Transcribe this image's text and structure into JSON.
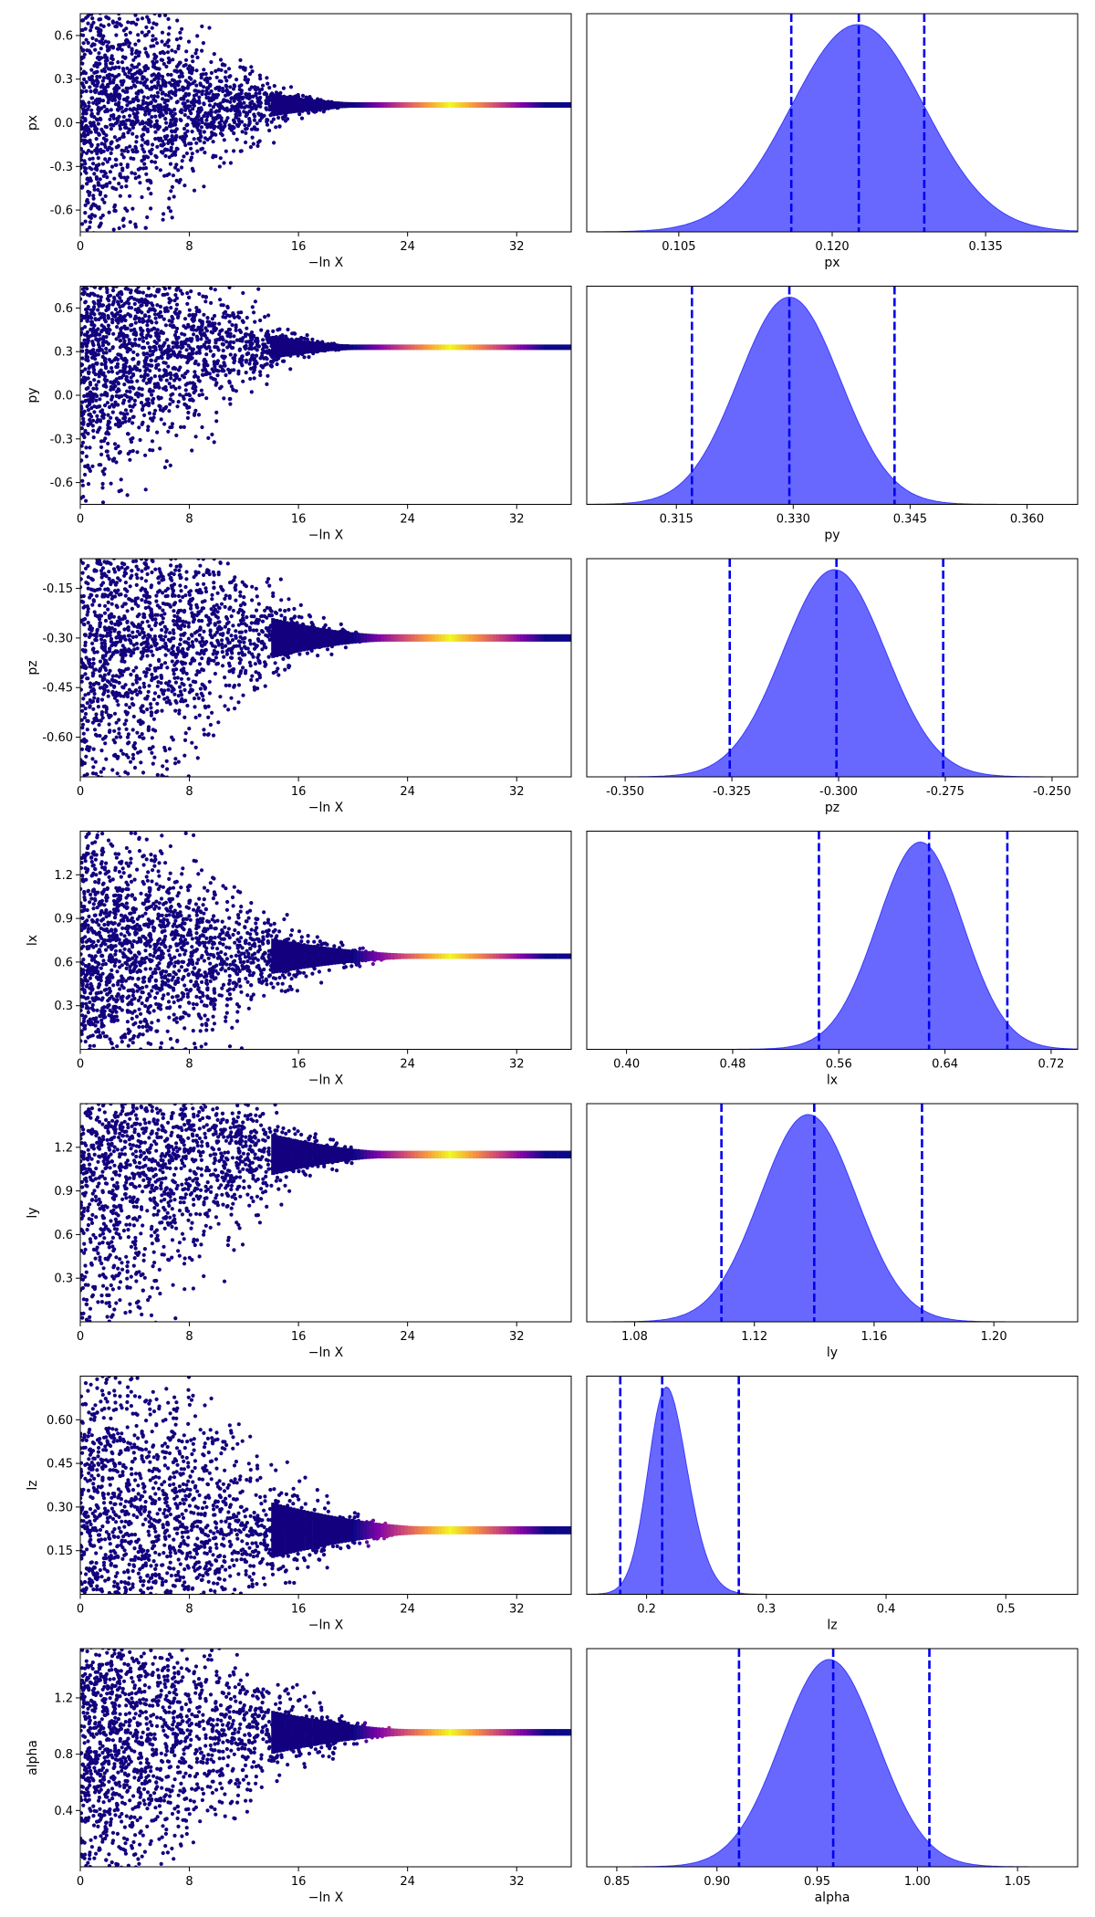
{
  "figure": {
    "background": "#ffffff",
    "title": ""
  },
  "colors": {
    "trace_base": "#12007e",
    "trace_colormap": "plasma",
    "density_fill": "#5b5bff",
    "density_edge": "#3a3aff",
    "quantile_line": "#0000ee"
  },
  "chart_data": [
    {
      "type": "scatter",
      "panel": "trace",
      "param": "px",
      "xlabel": "−ln X",
      "ylabel": "px",
      "xlim": [
        0,
        36
      ],
      "ylim": [
        -0.75,
        0.75
      ],
      "xticks": [
        "0",
        "8",
        "16",
        "24",
        "32"
      ],
      "yticks": [
        "0.6",
        "0.3",
        "0.0",
        "-0.3",
        "-0.6"
      ],
      "converged_value": 0.1225,
      "start_spread": 0.75,
      "converge_x": 20,
      "peak_x": 27,
      "grid": false,
      "colormap": "plasma"
    },
    {
      "type": "area",
      "panel": "posterior",
      "param": "px",
      "xlabel": "px",
      "xlim": [
        0.096,
        0.144
      ],
      "xticks": [
        "0.105",
        "0.120",
        "0.135"
      ],
      "mode": 0.1225,
      "sd": 0.0065,
      "skew": 0,
      "quantiles": [
        0.116,
        0.1226,
        0.129
      ],
      "grid": false
    },
    {
      "type": "scatter",
      "panel": "trace",
      "param": "py",
      "xlabel": "−ln X",
      "ylabel": "py",
      "xlim": [
        0,
        36
      ],
      "ylim": [
        -0.75,
        0.75
      ],
      "xticks": [
        "0",
        "8",
        "16",
        "24",
        "32"
      ],
      "yticks": [
        "0.6",
        "0.3",
        "0.0",
        "-0.3",
        "-0.6"
      ],
      "converged_value": 0.33,
      "start_spread": 0.75,
      "converge_x": 20,
      "peak_x": 27,
      "grid": false,
      "colormap": "plasma"
    },
    {
      "type": "area",
      "panel": "posterior",
      "param": "py",
      "xlabel": "py",
      "xlim": [
        0.3035,
        0.3665
      ],
      "xticks": [
        "0.315",
        "0.330",
        "0.345",
        "0.360"
      ],
      "mode": 0.3295,
      "sd": 0.0065,
      "skew": 0,
      "quantiles": [
        0.317,
        0.3295,
        0.343
      ],
      "grid": false
    },
    {
      "type": "scatter",
      "panel": "trace",
      "param": "pz",
      "xlabel": "−ln X",
      "ylabel": "pz",
      "xlim": [
        0,
        36
      ],
      "ylim": [
        -0.72,
        -0.06
      ],
      "xticks": [
        "0",
        "8",
        "16",
        "24",
        "32"
      ],
      "yticks": [
        "-0.15",
        "-0.30",
        "-0.45",
        "-0.60"
      ],
      "converged_value": -0.3,
      "start_spread": 0.45,
      "converge_x": 22,
      "peak_x": 27,
      "grid": false,
      "colormap": "plasma"
    },
    {
      "type": "area",
      "panel": "posterior",
      "param": "pz",
      "xlabel": "pz",
      "xlim": [
        -0.359,
        -0.244
      ],
      "xticks": [
        "-0.350",
        "-0.325",
        "-0.300",
        "-0.275",
        "-0.250"
      ],
      "mode": -0.301,
      "sd": 0.012,
      "skew": 0,
      "quantiles": [
        -0.3255,
        -0.3005,
        -0.2755
      ],
      "grid": false
    },
    {
      "type": "scatter",
      "panel": "trace",
      "param": "lx",
      "xlabel": "−ln X",
      "ylabel": "lx",
      "xlim": [
        0,
        36
      ],
      "ylim": [
        0.0,
        1.5
      ],
      "xticks": [
        "0",
        "8",
        "16",
        "24",
        "32"
      ],
      "yticks": [
        "1.2",
        "0.9",
        "0.6",
        "0.3"
      ],
      "converged_value": 0.64,
      "start_spread": 0.75,
      "converge_x": 24,
      "peak_x": 27,
      "grid": false,
      "colormap": "plasma"
    },
    {
      "type": "area",
      "panel": "posterior",
      "param": "lx",
      "xlabel": "lx",
      "xlim": [
        0.37,
        0.74
      ],
      "xticks": [
        "0.40",
        "0.48",
        "0.56",
        "0.64",
        "0.72"
      ],
      "mode": 0.636,
      "sd": 0.036,
      "skew": -0.6,
      "quantiles": [
        0.545,
        0.628,
        0.687
      ],
      "grid": false
    },
    {
      "type": "scatter",
      "panel": "trace",
      "param": "ly",
      "xlabel": "−ln X",
      "ylabel": "ly",
      "xlim": [
        0,
        36
      ],
      "ylim": [
        0.0,
        1.5
      ],
      "xticks": [
        "0",
        "8",
        "16",
        "24",
        "32"
      ],
      "yticks": [
        "1.2",
        "0.9",
        "0.6",
        "0.3"
      ],
      "converged_value": 1.15,
      "start_spread": 1.05,
      "converge_x": 22,
      "peak_x": 27,
      "grid": false,
      "colormap": "plasma"
    },
    {
      "type": "area",
      "panel": "posterior",
      "param": "ly",
      "xlabel": "ly",
      "xlim": [
        1.064,
        1.228
      ],
      "xticks": [
        "1.08",
        "1.12",
        "1.16",
        "1.20"
      ],
      "mode": 1.138,
      "sd": 0.016,
      "skew": 0,
      "quantiles": [
        1.109,
        1.14,
        1.176
      ],
      "grid": false
    },
    {
      "type": "scatter",
      "panel": "trace",
      "param": "lz",
      "xlabel": "−ln X",
      "ylabel": "lz",
      "xlim": [
        0,
        36
      ],
      "ylim": [
        0.0,
        0.75
      ],
      "xticks": [
        "0",
        "8",
        "16",
        "24",
        "32"
      ],
      "yticks": [
        "0.60",
        "0.45",
        "0.30",
        "0.15"
      ],
      "converged_value": 0.22,
      "start_spread": 0.55,
      "converge_x": 25,
      "peak_x": 27,
      "grid": false,
      "colormap": "plasma"
    },
    {
      "type": "area",
      "panel": "posterior",
      "param": "lz",
      "xlabel": "lz",
      "xlim": [
        0.15,
        0.56
      ],
      "xticks": [
        "0.2",
        "0.3",
        "0.4",
        "0.5"
      ],
      "mode": 0.205,
      "sd": 0.022,
      "skew": 1.3,
      "quantiles": [
        0.178,
        0.213,
        0.277
      ],
      "grid": false
    },
    {
      "type": "scatter",
      "panel": "trace",
      "param": "alpha",
      "xlabel": "−ln X",
      "ylabel": "alpha",
      "xlim": [
        0,
        36
      ],
      "ylim": [
        0.0,
        1.55
      ],
      "xticks": [
        "0",
        "8",
        "16",
        "24",
        "32"
      ],
      "yticks": [
        "1.2",
        "0.8",
        "0.4"
      ],
      "converged_value": 0.955,
      "start_spread": 0.95,
      "converge_x": 24,
      "peak_x": 27,
      "grid": false,
      "colormap": "plasma"
    },
    {
      "type": "area",
      "panel": "posterior",
      "param": "alpha",
      "xlabel": "alpha",
      "xlim": [
        0.835,
        1.08
      ],
      "xticks": [
        "0.85",
        "0.90",
        "0.95",
        "1.00",
        "1.05"
      ],
      "mode": 0.956,
      "sd": 0.024,
      "skew": 0,
      "quantiles": [
        0.911,
        0.958,
        1.006
      ],
      "grid": false
    }
  ]
}
